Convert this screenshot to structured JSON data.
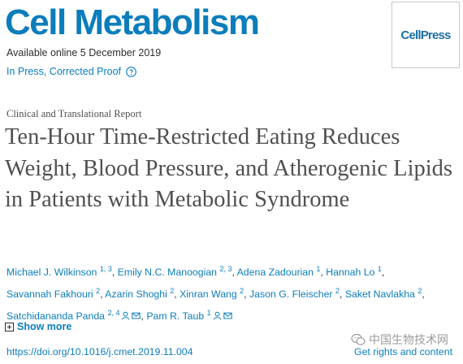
{
  "journal": {
    "title": "Cell Metabolism",
    "available": "Available online 5 December 2019",
    "status": "In Press, Corrected Proof",
    "publisher_logo": "CellPress"
  },
  "article": {
    "type": "Clinical and Translational Report",
    "title": "Ten-Hour Time-Restricted Eating Reduces Weight, Blood Pressure, and Atherogenic Lipids in Patients with Metabolic Syndrome"
  },
  "authors": [
    {
      "name": "Michael J. Wilkinson",
      "aff": "1, 3"
    },
    {
      "name": "Emily N.C. Manoogian",
      "aff": "2, 3"
    },
    {
      "name": "Adena Zadourian",
      "aff": "1"
    },
    {
      "name": "Hannah Lo",
      "aff": "1"
    },
    {
      "name": "Savannah Fakhouri",
      "aff": "2"
    },
    {
      "name": "Azarin Shoghi",
      "aff": "2"
    },
    {
      "name": "Xinran Wang",
      "aff": "2"
    },
    {
      "name": "Jason G. Fleischer",
      "aff": "2"
    },
    {
      "name": "Saket Navlakha",
      "aff": "2"
    },
    {
      "name": "Satchidananda Panda",
      "aff": "2, 4"
    },
    {
      "name": "Pam R. Taub",
      "aff": "1"
    }
  ],
  "show_more": "Show more",
  "doi": "https://doi.org/10.1016/j.cmet.2019.11.004",
  "rights": "Get rights and content",
  "watermark": "中国生物技术网",
  "icons": {
    "help": "question-circle-icon",
    "person": "person-icon",
    "mail": "envelope-icon",
    "plus": "plus-square-icon",
    "wechat": "wechat-icon"
  },
  "colors": {
    "link": "#0c7dbb",
    "title": "#505050",
    "text": "#2e2e2e"
  }
}
